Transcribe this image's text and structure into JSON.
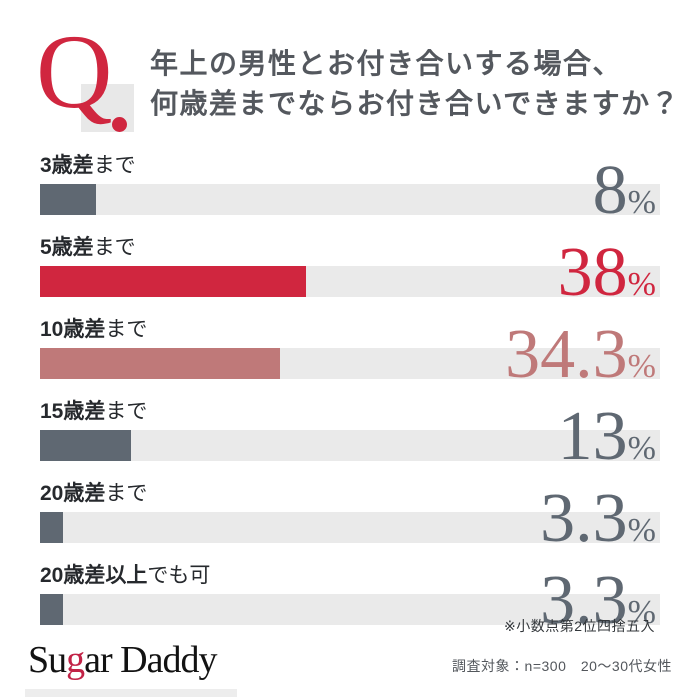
{
  "header": {
    "q_mark": "Q",
    "question_line1": "年上の男性とお付き合いする場合、",
    "question_line2": "何歳差までならお付き合いできますか？"
  },
  "chart_data": {
    "type": "bar",
    "orientation": "horizontal",
    "title": "年上の男性とお付き合いする場合、何歳差までならお付き合いできますか？",
    "categories": [
      "3歳差まで",
      "5歳差まで",
      "10歳差まで",
      "15歳差まで",
      "20歳差まで",
      "20歳差以上でも可"
    ],
    "values": [
      8,
      38,
      34.3,
      13,
      3.3,
      3.3
    ],
    "unit": "%",
    "xlim": [
      0,
      100
    ],
    "legend": false,
    "grid": false,
    "track_color": "#eaeaea",
    "bars": [
      {
        "label_strong": "3歳差",
        "label_rest": "まで",
        "value": "8",
        "color": "#5f6872"
      },
      {
        "label_strong": "5歳差",
        "label_rest": "まで",
        "value": "38",
        "color": "#d0263f"
      },
      {
        "label_strong": "10歳差",
        "label_rest": "まで",
        "value": "34.3",
        "color": "#bf7979"
      },
      {
        "label_strong": "15歳差",
        "label_rest": "まで",
        "value": "13",
        "color": "#5f6872"
      },
      {
        "label_strong": "20歳差",
        "label_rest": "まで",
        "value": "3.3",
        "color": "#5f6872"
      },
      {
        "label_strong": "20歳差以上",
        "label_rest": "でも可",
        "value": "3.3",
        "color": "#5f6872"
      }
    ]
  },
  "footnote": "※小数点第2位四捨五入",
  "footer": {
    "logo_pre": "Su",
    "logo_accent": "g",
    "logo_post": "ar Daddy",
    "survey_text": "調査対象：n=300　20〜30代女性",
    "accent_color": "#c22347"
  },
  "colors": {
    "question_red": "#d0263f",
    "rose": "#bf7979",
    "slate": "#5f6872",
    "track": "#eaeaea",
    "question_text": "#54585e"
  }
}
